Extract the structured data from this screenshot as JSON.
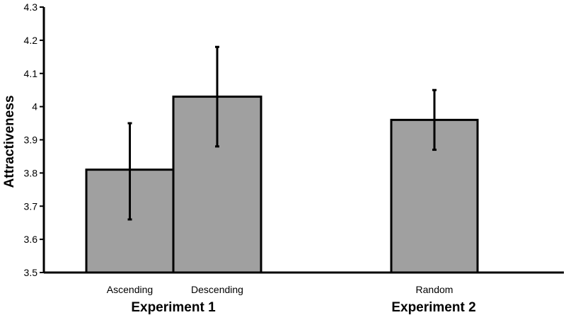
{
  "chart_data": {
    "type": "bar",
    "ylabel": "Attractiveness",
    "ylim": [
      3.5,
      4.3
    ],
    "yticks": [
      "3.5",
      "3.6",
      "3.7",
      "3.8",
      "3.9",
      "4",
      "4.1",
      "4.2",
      "4.3"
    ],
    "categories": [
      "Ascending",
      "Descending",
      "Random"
    ],
    "values": [
      3.81,
      4.03,
      3.96
    ],
    "error_low": [
      3.66,
      3.88,
      3.87
    ],
    "error_high": [
      3.95,
      4.18,
      4.05
    ],
    "groups": [
      {
        "label": "Experiment 1",
        "categories": [
          "Ascending",
          "Descending"
        ]
      },
      {
        "label": "Experiment 2",
        "categories": [
          "Random"
        ]
      }
    ],
    "bar_color": "#a0a0a0",
    "grid": false
  }
}
